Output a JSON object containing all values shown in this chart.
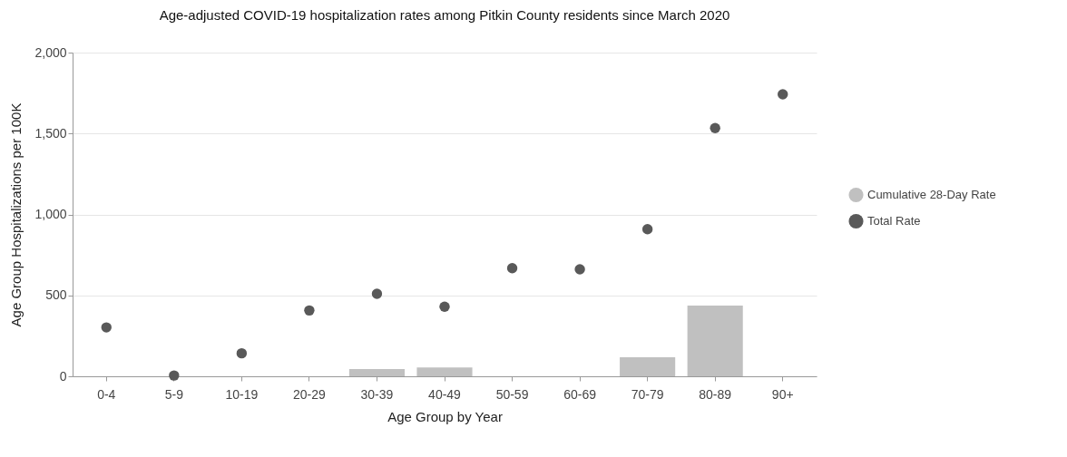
{
  "chart_data": {
    "type": "bar",
    "title": "Age-adjusted COVID-19 hospitalization rates among Pitkin County residents since March 2020",
    "xlabel": "Age Group by Year",
    "ylabel": "Age Group Hospitalizations per 100K",
    "categories": [
      "0-4",
      "5-9",
      "10-19",
      "20-29",
      "30-39",
      "40-49",
      "50-59",
      "60-69",
      "70-79",
      "80-89",
      "90+"
    ],
    "series": [
      {
        "name": "Cumulative 28-Day Rate",
        "color": "#c0c0c0",
        "values": [
          0,
          0,
          0,
          0,
          45,
          54,
          0,
          0,
          118,
          437,
          0
        ]
      },
      {
        "name": "Total Rate",
        "type": "scatter",
        "color": "#595959",
        "values": [
          302,
          5,
          142,
          407,
          510,
          430,
          668,
          661,
          909,
          1534,
          1742
        ]
      }
    ],
    "ylim": [
      0,
      2000
    ],
    "yticks": [
      0,
      500,
      {
        "value": 1000,
        "label": "1,000"
      },
      {
        "value": 1500,
        "label": "1,500"
      },
      {
        "value": 2000,
        "label": "2,000"
      }
    ],
    "grid": "y",
    "legend": "right",
    "marker": "circle"
  }
}
